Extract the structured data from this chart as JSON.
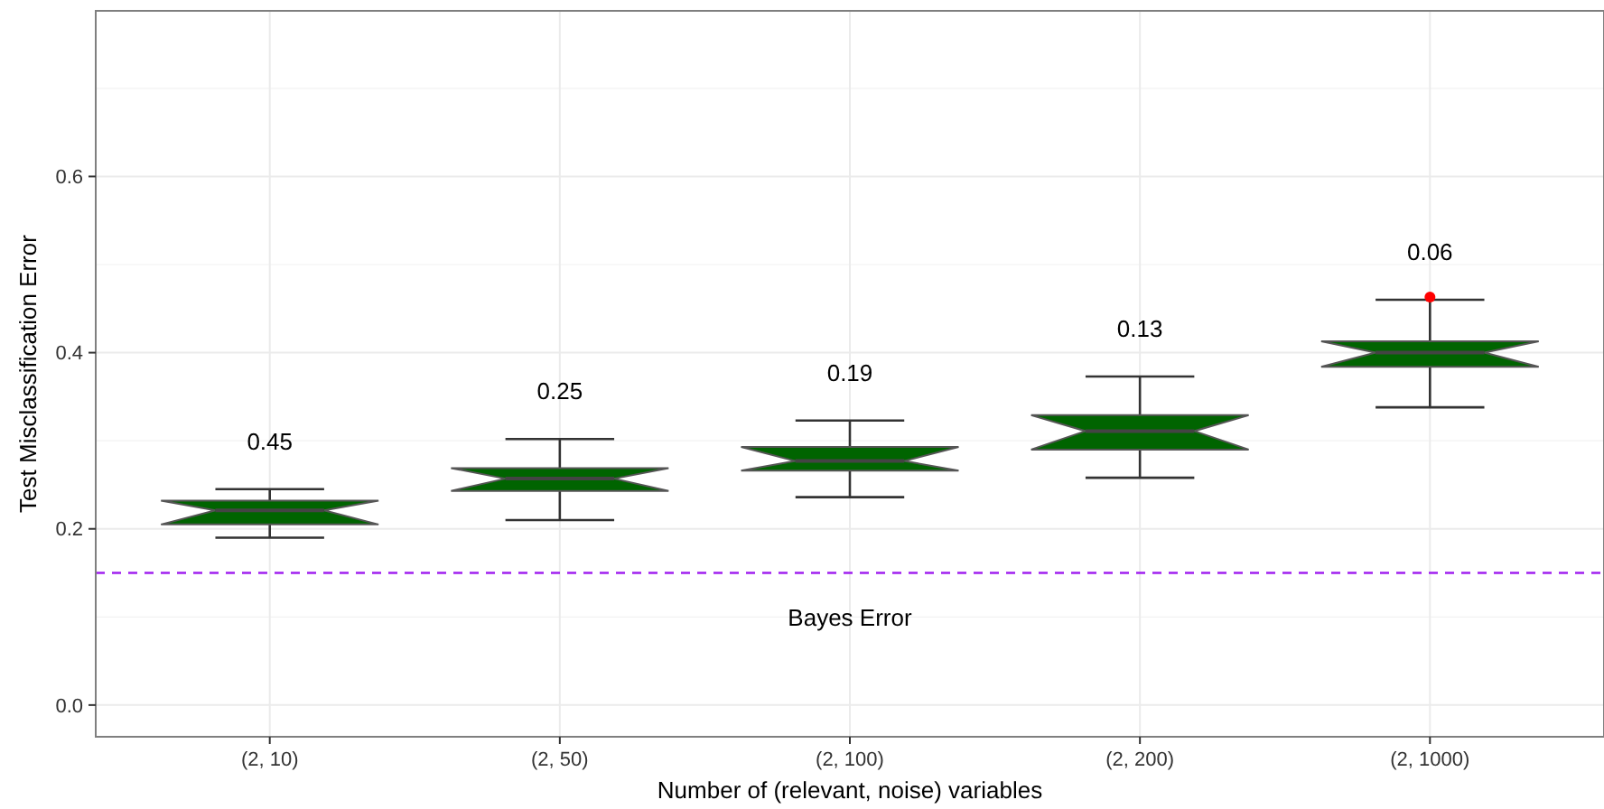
{
  "chart_data": {
    "type": "box",
    "xlabel": "Number of (relevant, noise) variables",
    "ylabel": "Test Misclassification Error",
    "categories": [
      "(2, 10)",
      "(2, 50)",
      "(2, 100)",
      "(2, 200)",
      "(2, 1000)"
    ],
    "color": "#006400",
    "boxes": [
      {
        "low": 0.19,
        "q1": 0.205,
        "median": 0.221,
        "q3": 0.232,
        "high": 0.245
      },
      {
        "low": 0.21,
        "q1": 0.243,
        "median": 0.257,
        "q3": 0.269,
        "high": 0.302
      },
      {
        "low": 0.236,
        "q1": 0.266,
        "median": 0.277,
        "q3": 0.293,
        "high": 0.323
      },
      {
        "low": 0.258,
        "q1": 0.29,
        "median": 0.311,
        "q3": 0.329,
        "high": 0.373
      },
      {
        "low": 0.338,
        "q1": 0.384,
        "median": 0.4,
        "q3": 0.413,
        "high": 0.46,
        "outliers": [
          0.463
        ]
      }
    ],
    "ylim": [
      -0.036,
      0.788
    ],
    "yticks": [
      {
        "value": 0,
        "label": "0.0"
      },
      0.2,
      0.4,
      0.6
    ],
    "grid": true,
    "ref_lines": [
      {
        "axis": "y",
        "value": 0.15,
        "label": "Bayes Error",
        "color": "#a020f0",
        "line_style": "dashed"
      }
    ],
    "annotations": [
      "0.45",
      "0.25",
      "0.19",
      "0.13",
      "0.06"
    ]
  }
}
